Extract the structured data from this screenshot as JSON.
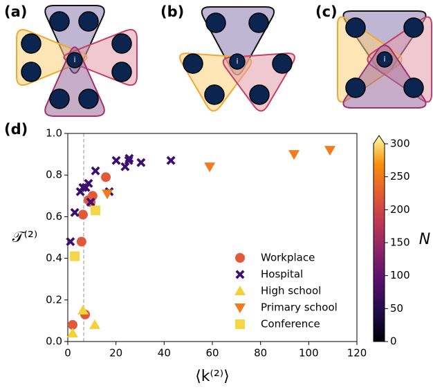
{
  "panels": [
    {
      "label": "(a)",
      "center_label": "i"
    },
    {
      "label": "(b)",
      "center_label": "i"
    },
    {
      "label": "(c)",
      "center_label": "i"
    }
  ],
  "chart_data": {
    "type": "scatter",
    "label": "(d)",
    "xlabel": "⟨k⁽²⁾⟩",
    "ylabel": "𝒯⁽²⁾",
    "xlim": [
      0,
      120
    ],
    "xticks": [
      0,
      20,
      40,
      60,
      80,
      100,
      120
    ],
    "ylim": [
      0,
      1
    ],
    "yticks": [
      {
        "value": 0,
        "label": "0.0"
      },
      {
        "value": 0.2,
        "label": "0.2"
      },
      {
        "value": 0.4,
        "label": "0.4"
      },
      {
        "value": 0.6,
        "label": "0.6"
      },
      {
        "value": 0.8,
        "label": "0.8"
      },
      {
        "value": 1,
        "label": "1.0"
      }
    ],
    "vline": 6.6,
    "legend": "lower right",
    "colorbar": {
      "label": "N",
      "lim": [
        0,
        300
      ],
      "ticks": [
        0,
        50,
        100,
        150,
        200,
        250,
        300
      ]
    },
    "series": [
      {
        "name": "Workplace",
        "marker": "circle",
        "color": "#e05a3a",
        "x": [
          2,
          7.2,
          5.7,
          6.3,
          8.6,
          9.5,
          10.3,
          15.8
        ],
        "values": [
          0.08,
          0.13,
          0.48,
          0.61,
          0.68,
          0.67,
          0.7,
          0.79
        ]
      },
      {
        "name": "Hospital",
        "marker": "x",
        "color": "#3b0f6f",
        "x": [
          1.1,
          2.9,
          5.2,
          6.3,
          7.5,
          8.6,
          11.5,
          9.5,
          17.2,
          20.1,
          23.8,
          25.3,
          25.5,
          30.4,
          42.8
        ],
        "values": [
          0.48,
          0.62,
          0.72,
          0.74,
          0.74,
          0.76,
          0.82,
          0.67,
          0.72,
          0.87,
          0.84,
          0.87,
          0.88,
          0.86,
          0.87
        ]
      },
      {
        "name": "High school",
        "marker": "triangle-up",
        "color": "#f2d23a",
        "x": [
          2,
          6.3,
          11.2
        ],
        "values": [
          0.04,
          0.15,
          0.08
        ]
      },
      {
        "name": "Primary school",
        "marker": "triangle-down",
        "color": "#f37b1d",
        "x": [
          16.4,
          58.9,
          93.9,
          108.8
        ],
        "values": [
          0.71,
          0.84,
          0.9,
          0.92
        ]
      },
      {
        "name": "Conference",
        "marker": "square",
        "color": "#f6d646",
        "x": [
          2.9,
          11.5
        ],
        "values": [
          0.41,
          0.63
        ]
      }
    ]
  }
}
